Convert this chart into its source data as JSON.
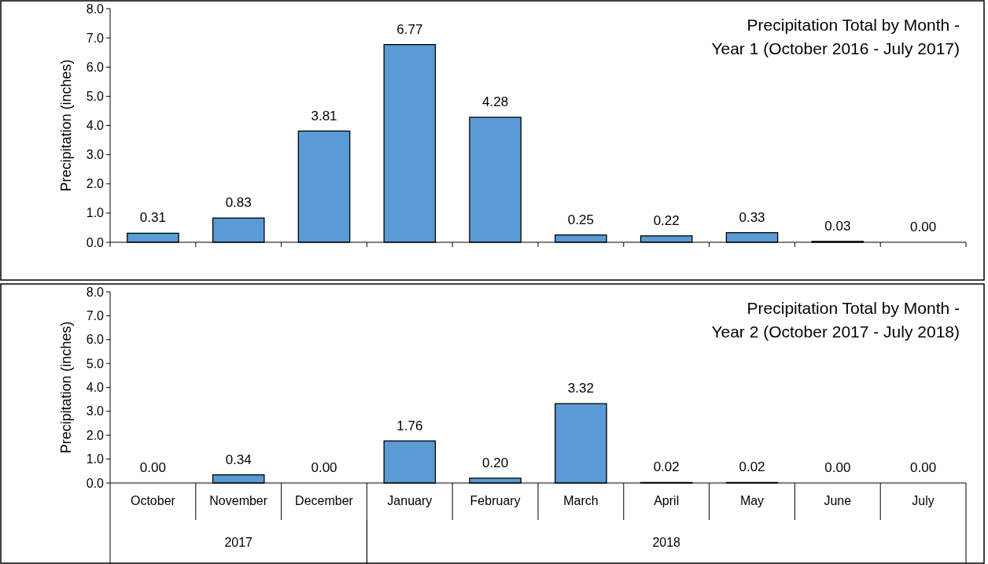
{
  "chart_data": [
    {
      "type": "bar",
      "title": "Precipitation Total by Month -\nYear 1 (October 2016 - July 2017)",
      "ylabel": "Precipitation (inches)",
      "categories": [
        null,
        null,
        null,
        null,
        null,
        null,
        null,
        null,
        null,
        null
      ],
      "values": [
        0.31,
        0.83,
        3.81,
        6.77,
        4.28,
        0.25,
        0.22,
        0.33,
        0.03,
        0
      ],
      "value_labels": [
        "0.31",
        "0.83",
        "3.81",
        "6.77",
        "4.28",
        "0.25",
        "0.22",
        "0.33",
        "0.03",
        "0.00"
      ],
      "color": "#5b9bd5",
      "ylim": [
        0,
        8
      ],
      "yticks": [
        {
          "value": 0,
          "label": "0.0"
        },
        {
          "value": 1,
          "label": "1.0"
        },
        {
          "value": 2,
          "label": "2.0"
        },
        {
          "value": 3,
          "label": "3.0"
        },
        {
          "value": 4,
          "label": "4.0"
        },
        {
          "value": 5,
          "label": "5.0"
        },
        {
          "value": 6,
          "label": "6.0"
        },
        {
          "value": 7,
          "label": "7.0"
        },
        {
          "value": 8,
          "label": "8.0"
        }
      ],
      "tick_labels": "y",
      "grid": false
    },
    {
      "type": "bar",
      "title": "Precipitation Total by Month -\nYear 2 (October 2017 - July 2018)",
      "ylabel": "Precipitation (inches)",
      "categories": [
        "October",
        "November",
        "December",
        "January",
        "February",
        "March",
        "April",
        "May",
        "June",
        "July"
      ],
      "values": [
        0,
        0.34,
        0,
        1.76,
        0.2,
        3.32,
        0.02,
        0.02,
        0,
        0
      ],
      "value_labels": [
        "0.00",
        "0.34",
        "0.00",
        "1.76",
        "0.20",
        "3.32",
        "0.02",
        "0.02",
        "0.00",
        "0.00"
      ],
      "color": "#5b9bd5",
      "ylim": [
        0,
        8
      ],
      "yticks": [
        {
          "value": 0,
          "label": "0.0"
        },
        {
          "value": 1,
          "label": "1.0"
        },
        {
          "value": 2,
          "label": "2.0"
        },
        {
          "value": 3,
          "label": "3.0"
        },
        {
          "value": 4,
          "label": "4.0"
        },
        {
          "value": 5,
          "label": "5.0"
        },
        {
          "value": 6,
          "label": "6.0"
        },
        {
          "value": 7,
          "label": "7.0"
        },
        {
          "value": 8,
          "label": "8.0"
        }
      ],
      "grid": false,
      "annotations": [
        "2017",
        "2018"
      ]
    }
  ]
}
